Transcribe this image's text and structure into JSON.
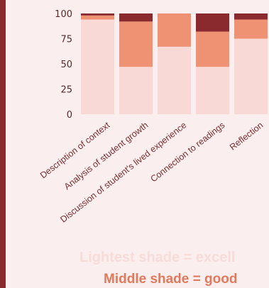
{
  "chart_data": {
    "type": "bar",
    "stacked": true,
    "categories": [
      "Description of context",
      "Analysis of student growth",
      "Discussion of student's lived experience",
      "Connection to readings",
      "Reflection"
    ],
    "series": [
      {
        "values": [
          94,
          47,
          67,
          47,
          75
        ],
        "color": "#f8d9d5"
      },
      {
        "values": [
          4,
          45,
          33,
          35,
          19
        ],
        "color": "#ef9273"
      },
      {
        "values": [
          2,
          8,
          0,
          18,
          6
        ],
        "color": "#8a2a2f"
      }
    ],
    "yticks": [
      0,
      25,
      50,
      75,
      100
    ],
    "ylim": [
      0,
      100
    ],
    "grid": false
  },
  "legend": {
    "lightest": "Lightest shade = excell",
    "middle": "Middle shade = good"
  }
}
